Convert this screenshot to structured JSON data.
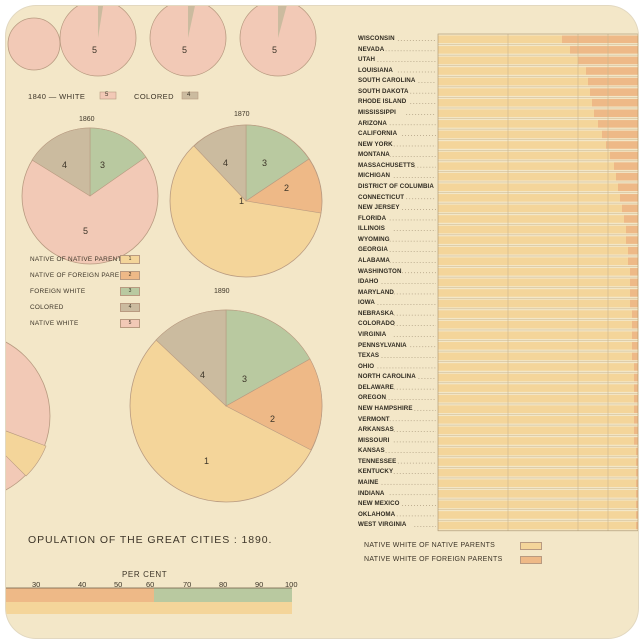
{
  "chart_data": [
    {
      "type": "pie",
      "title": "1840 — WHITE",
      "note": "partially visible pies along top edge",
      "legend": [
        {
          "label": "WHITE",
          "key": "5"
        },
        {
          "label": "COLORED",
          "key": "4"
        }
      ],
      "top_pie_labels": [
        "5",
        "5",
        "5"
      ]
    },
    {
      "type": "pie",
      "title": "1860",
      "slices": [
        {
          "key": "5",
          "label": "NATIVE WHITE",
          "value": 78,
          "color": "#f2c9b6"
        },
        {
          "key": "3",
          "label": "FOREIGN WHITE",
          "value": 12,
          "color": "#b9c9a0"
        },
        {
          "key": "4",
          "label": "COLORED",
          "value": 10,
          "color": "#cbbb9f"
        }
      ]
    },
    {
      "type": "pie",
      "title": "1870",
      "slices": [
        {
          "key": "1",
          "label": "NATIVE OF NATIVE PARENTS",
          "value": 62,
          "color": "#f4d59a"
        },
        {
          "key": "2",
          "label": "NATIVE OF FOREIGN PARENTS",
          "value": 14,
          "color": "#eeb987"
        },
        {
          "key": "3",
          "label": "FOREIGN WHITE",
          "value": 14,
          "color": "#b9c9a0"
        },
        {
          "key": "4",
          "label": "COLORED",
          "value": 10,
          "color": "#cbbb9f"
        }
      ]
    },
    {
      "type": "pie",
      "title": "1890",
      "slices": [
        {
          "key": "1",
          "label": "NATIVE OF NATIVE PARENTS",
          "value": 52,
          "color": "#f4d59a"
        },
        {
          "key": "2",
          "label": "NATIVE OF FOREIGN PARENTS",
          "value": 19,
          "color": "#eeb987"
        },
        {
          "key": "3",
          "label": "FOREIGN WHITE",
          "value": 17,
          "color": "#b9c9a0"
        },
        {
          "key": "4",
          "label": "COLORED",
          "value": 12,
          "color": "#cbbb9f"
        }
      ]
    },
    {
      "type": "bar",
      "orientation": "horizontal-stacked",
      "categories": [
        "WISCONSIN",
        "NEVADA",
        "UTAH",
        "LOUISIANA",
        "SOUTH CAROLINA",
        "SOUTH DAKOTA",
        "RHODE ISLAND",
        "MISSISSIPPI",
        "ARIZONA",
        "CALIFORNIA",
        "NEW YORK",
        "MONTANA",
        "MASSACHUSETTS",
        "MICHIGAN",
        "DISTRICT OF COLUMBIA",
        "CONNECTICUT",
        "NEW JERSEY",
        "FLORIDA",
        "ILLINOIS",
        "WYOMING",
        "GEORGIA",
        "ALABAMA",
        "WASHINGTON",
        "IDAHO",
        "MARYLAND",
        "IOWA",
        "NEBRASKA",
        "COLORADO",
        "VIRGINIA",
        "PENNSYLVANIA",
        "TEXAS",
        "OHIO",
        "NORTH CAROLINA",
        "DELAWARE",
        "OREGON",
        "NEW HAMPSHIRE",
        "VERMONT",
        "ARKANSAS",
        "MISSOURI",
        "KANSAS",
        "TENNESSEE",
        "KENTUCKY",
        "MAINE",
        "INDIANA",
        "NEW MEXICO",
        "OKLAHOMA",
        "WEST VIRGINIA"
      ],
      "series": [
        {
          "name": "NATIVE WHITE OF NATIVE PARENTS",
          "color": "#f4d59a",
          "values": [
            62,
            66,
            70,
            74,
            75,
            76,
            77,
            78,
            80,
            82,
            84,
            86,
            88,
            89,
            90,
            91,
            92,
            93,
            94,
            94,
            95,
            95,
            96,
            96,
            96,
            96,
            97,
            97,
            97,
            97,
            97,
            98,
            98,
            98,
            98,
            98,
            98,
            98,
            98,
            99,
            99,
            99,
            99,
            99,
            99,
            99,
            99
          ]
        },
        {
          "name": "NATIVE WHITE OF FOREIGN PARENTS",
          "color": "#eeb987",
          "values": [
            38,
            34,
            30,
            26,
            25,
            24,
            23,
            22,
            20,
            18,
            16,
            14,
            12,
            11,
            10,
            9,
            8,
            7,
            6,
            6,
            5,
            5,
            4,
            4,
            4,
            4,
            3,
            3,
            3,
            3,
            3,
            2,
            2,
            2,
            2,
            2,
            2,
            2,
            2,
            1,
            1,
            1,
            1,
            1,
            1,
            1,
            1
          ]
        }
      ],
      "legend": [
        "NATIVE WHITE OF NATIVE PARENTS",
        "NATIVE WHITE OF FOREIGN PARENTS"
      ]
    }
  ],
  "pies": {
    "top_labels": [
      "5",
      "5",
      "5"
    ],
    "p1860": {
      "title": "1860",
      "labels": [
        "4",
        "3",
        "5"
      ]
    },
    "p1870": {
      "title": "1870",
      "labels": [
        "4",
        "3",
        "2",
        "1"
      ]
    },
    "p1890": {
      "title": "1890",
      "labels": [
        "4",
        "3",
        "2",
        "1"
      ]
    }
  },
  "legend_1840": {
    "title": "1840 — WHITE",
    "white_key": "5",
    "colored_label": "COLORED",
    "colored_key": "4"
  },
  "pie_legend": [
    {
      "label": "NATIVE OF NATIVE PARENTS",
      "key": "1",
      "color": "#f4d59a"
    },
    {
      "label": "NATIVE OF FOREIGN PARENTS",
      "key": "2",
      "color": "#eeb987"
    },
    {
      "label": "FOREIGN WHITE",
      "key": "3",
      "color": "#b9c9a0"
    },
    {
      "label": "COLORED",
      "key": "4",
      "color": "#cbbb9f"
    },
    {
      "label": "NATIVE WHITE",
      "key": "5",
      "color": "#f2c9b6"
    }
  ],
  "caption": "OPULATION OF THE GREAT CITIES : 1890.",
  "percent_scale": {
    "title": "PER CENT",
    "ticks": [
      "30",
      "40",
      "50",
      "60",
      "70",
      "80",
      "90",
      "100"
    ]
  },
  "bar_legend": [
    "NATIVE WHITE OF NATIVE PARENTS",
    "NATIVE WHITE OF FOREIGN PARENTS"
  ],
  "colors": {
    "paper": "#f3e7c8",
    "native_native": "#f4d59a",
    "native_foreign": "#eeb987",
    "foreign": "#b9c9a0",
    "colored": "#cbbb9f",
    "native_white": "#f2c9b6"
  }
}
